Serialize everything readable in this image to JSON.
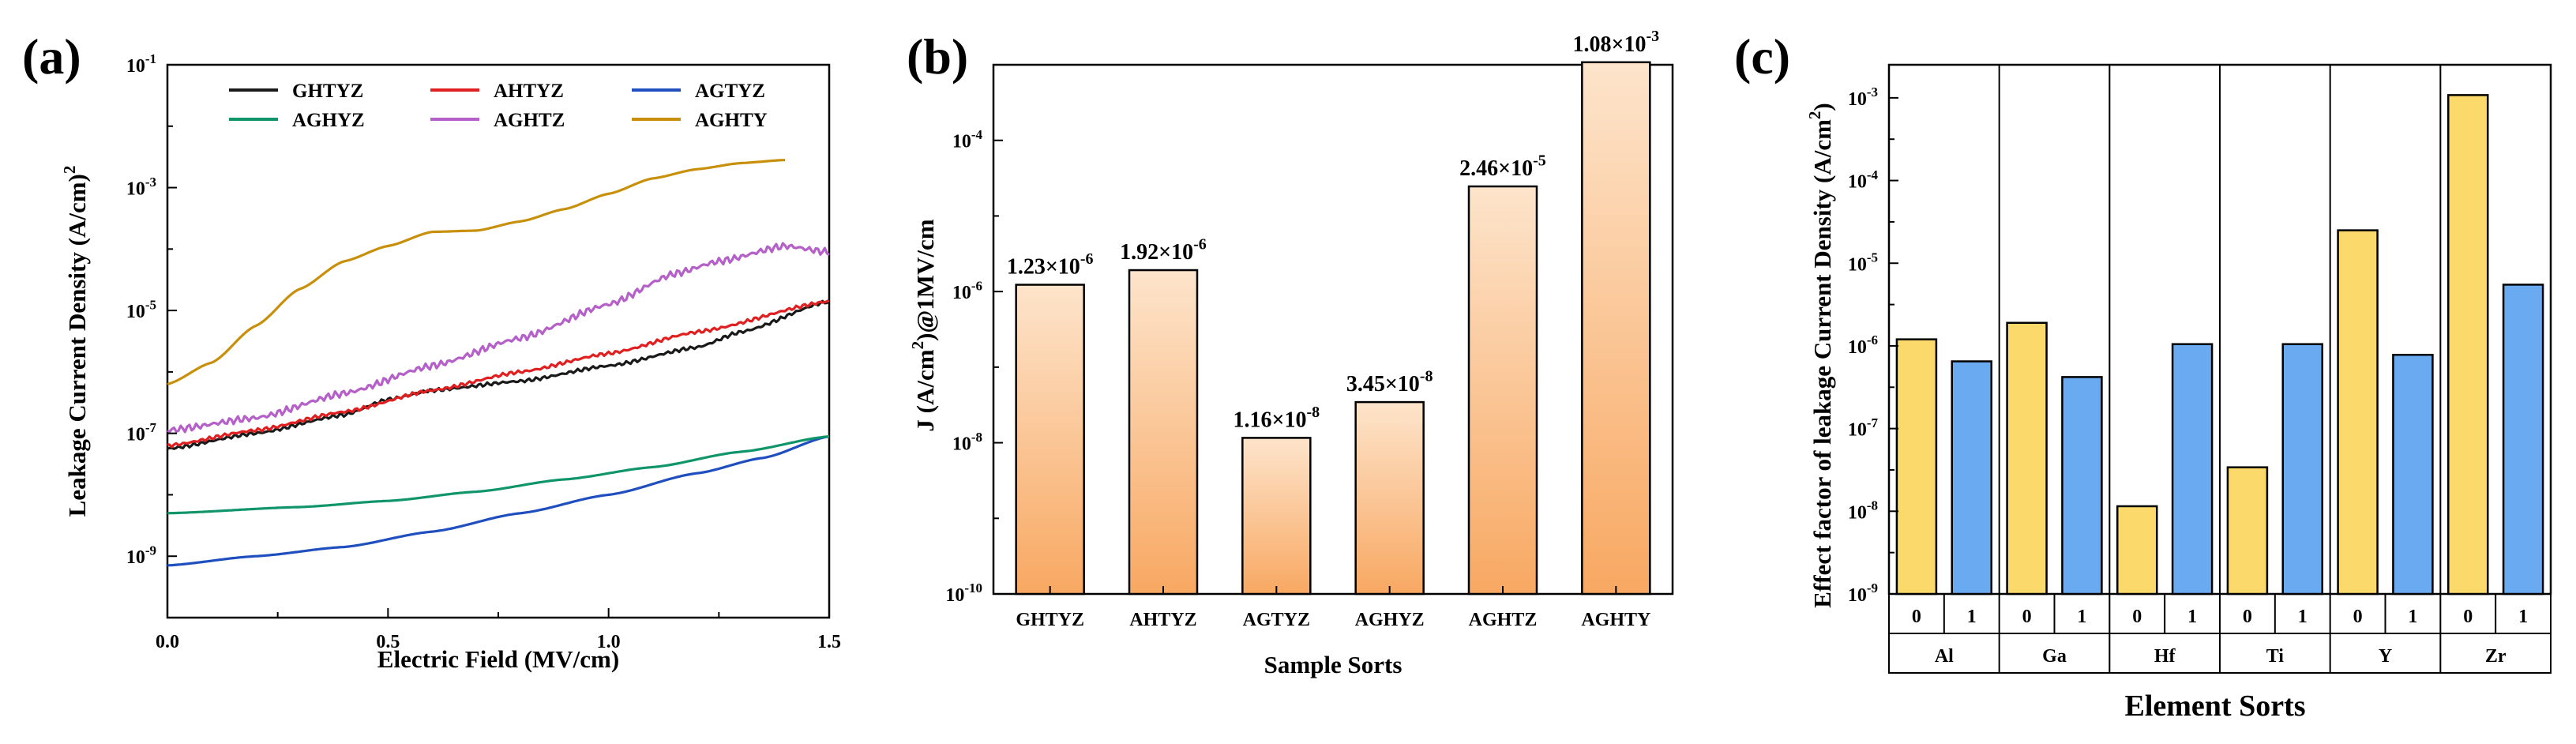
{
  "panels": {
    "a": "(a)",
    "b": "(b)",
    "c": "(c)"
  },
  "chart_data": [
    {
      "panel": "(a)",
      "type": "line",
      "title": "",
      "xlabel": "Electric Field (MV/cm)",
      "ylabel": "Leakage Current Density (A/cm)",
      "ylabel_sup": "2",
      "xscale": "linear",
      "yscale": "log",
      "xlim": [
        0,
        1.5
      ],
      "ylim_exp": [
        -10,
        -1
      ],
      "xticks": [
        "0.0",
        "0.5",
        "1.0",
        "1.5"
      ],
      "yticks": [
        {
          "exp": -1,
          "base": "10",
          "sup": "-1"
        },
        {
          "exp": -3,
          "base": "10",
          "sup": "-3"
        },
        {
          "exp": -5,
          "base": "10",
          "sup": "-5"
        },
        {
          "exp": -7,
          "base": "10",
          "sup": "-7"
        },
        {
          "exp": -9,
          "base": "10",
          "sup": "-9"
        }
      ],
      "legend_position": "top",
      "series": [
        {
          "name": "GHTYZ",
          "color": "#1a1a1a",
          "noise": 0.03,
          "x": [
            0,
            0.2,
            0.4,
            0.5,
            0.6,
            0.8,
            1.0,
            1.2,
            1.3,
            1.5
          ],
          "log_y": [
            -7.25,
            -7.0,
            -6.7,
            -6.45,
            -6.3,
            -6.15,
            -5.9,
            -5.6,
            -5.35,
            -4.85
          ]
        },
        {
          "name": "AHTYZ",
          "color": "#e02020",
          "noise": 0.03,
          "x": [
            0,
            0.2,
            0.4,
            0.6,
            0.8,
            1.0,
            1.2,
            1.5
          ],
          "log_y": [
            -7.2,
            -6.95,
            -6.65,
            -6.3,
            -6.0,
            -5.7,
            -5.35,
            -4.85
          ]
        },
        {
          "name": "AGTYZ",
          "color": "#1f4fbf",
          "noise": 0.0,
          "x": [
            0,
            0.2,
            0.4,
            0.6,
            0.8,
            1.0,
            1.2,
            1.35,
            1.5
          ],
          "log_y": [
            -9.15,
            -9.0,
            -8.85,
            -8.6,
            -8.3,
            -8.0,
            -7.65,
            -7.4,
            -7.05
          ]
        },
        {
          "name": "AGHYZ",
          "color": "#10956b",
          "noise": 0.0,
          "x": [
            0,
            0.3,
            0.5,
            0.7,
            0.9,
            1.1,
            1.3,
            1.5
          ],
          "log_y": [
            -8.3,
            -8.2,
            -8.1,
            -7.95,
            -7.75,
            -7.55,
            -7.3,
            -7.05
          ]
        },
        {
          "name": "AGHTZ",
          "color": "#b55fc8",
          "noise": 0.06,
          "x": [
            0,
            0.2,
            0.4,
            0.6,
            0.8,
            1.0,
            1.15,
            1.25,
            1.4,
            1.5
          ],
          "log_y": [
            -6.95,
            -6.75,
            -6.35,
            -5.9,
            -5.45,
            -4.9,
            -4.4,
            -4.2,
            -3.95,
            -4.05
          ]
        },
        {
          "name": "AGHTY",
          "color": "#c8900a",
          "noise": 0.0,
          "x": [
            0,
            0.1,
            0.2,
            0.3,
            0.4,
            0.5,
            0.6,
            0.7,
            0.8,
            0.9,
            1.0,
            1.1,
            1.2,
            1.3,
            1.4
          ],
          "log_y": [
            -6.2,
            -5.85,
            -5.25,
            -4.65,
            -4.2,
            -3.95,
            -3.72,
            -3.7,
            -3.55,
            -3.35,
            -3.1,
            -2.85,
            -2.7,
            -2.6,
            -2.55
          ]
        }
      ]
    },
    {
      "panel": "(b)",
      "type": "bar",
      "title": "",
      "xlabel": "Sample Sorts",
      "ylabel": "J (A/cm",
      "ylabel_sup": "2",
      "ylabel_tail": ")@1MV/cm",
      "yscale": "log",
      "ylim_exp": [
        -10,
        -3
      ],
      "yticks": [
        {
          "exp": -10,
          "base": "10",
          "sup": "-10"
        },
        {
          "exp": -8,
          "base": "10",
          "sup": "-8"
        },
        {
          "exp": -6,
          "base": "10",
          "sup": "-6"
        },
        {
          "exp": -4,
          "base": "10",
          "sup": "-4"
        }
      ],
      "bar_gradient": [
        "#fde4cb",
        "#f8a862"
      ],
      "categories": [
        "GHTYZ",
        "AHTYZ",
        "AGTYZ",
        "AGHYZ",
        "AGHTZ",
        "AGHTY"
      ],
      "values": [
        1.23e-06,
        1.92e-06,
        1.16e-08,
        3.45e-08,
        2.46e-05,
        0.00108
      ],
      "value_labels": [
        {
          "base": "1.23×10",
          "sup": "-6"
        },
        {
          "base": "1.92×10",
          "sup": "-6"
        },
        {
          "base": "1.16×10",
          "sup": "-8"
        },
        {
          "base": "3.45×10",
          "sup": "-8"
        },
        {
          "base": "2.46×10",
          "sup": "-5"
        },
        {
          "base": "1.08×10",
          "sup": "-3"
        }
      ]
    },
    {
      "panel": "(c)",
      "type": "bar",
      "title": "",
      "xlabel": "Element Sorts",
      "ylabel": "Effect factor of leakage Current Density (A/cm",
      "ylabel_sup": "2",
      "ylabel_tail": ")",
      "yscale": "log",
      "ylim_exp": [
        -9,
        -2.6
      ],
      "yticks": [
        {
          "exp": -3,
          "base": "10",
          "sup": "-3"
        },
        {
          "exp": -4,
          "base": "10",
          "sup": "-4"
        },
        {
          "exp": -5,
          "base": "10",
          "sup": "-5"
        },
        {
          "exp": -6,
          "base": "10",
          "sup": "-6"
        },
        {
          "exp": -7,
          "base": "10",
          "sup": "-7"
        },
        {
          "exp": -8,
          "base": "10",
          "sup": "-8"
        },
        {
          "exp": -9,
          "base": "10",
          "sup": "-9"
        }
      ],
      "colors": {
        "0": "#fbd96a",
        "1": "#6aaaf0"
      },
      "groups": [
        {
          "element": "Al",
          "sub": [
            "0",
            "1"
          ],
          "values": [
            1.2e-06,
            6.5e-07
          ]
        },
        {
          "element": "Ga",
          "sub": [
            "0",
            "1"
          ],
          "values": [
            1.9e-06,
            4.2e-07
          ]
        },
        {
          "element": "Hf",
          "sub": [
            "0",
            "1"
          ],
          "values": [
            1.15e-08,
            1.05e-06
          ]
        },
        {
          "element": "Ti",
          "sub": [
            "0",
            "1"
          ],
          "values": [
            3.4e-08,
            1.05e-06
          ]
        },
        {
          "element": "Y",
          "sub": [
            "0",
            "1"
          ],
          "values": [
            2.5e-05,
            7.8e-07
          ]
        },
        {
          "element": "Zr",
          "sub": [
            "0",
            "1"
          ],
          "values": [
            0.00108,
            5.5e-06
          ]
        }
      ]
    }
  ]
}
